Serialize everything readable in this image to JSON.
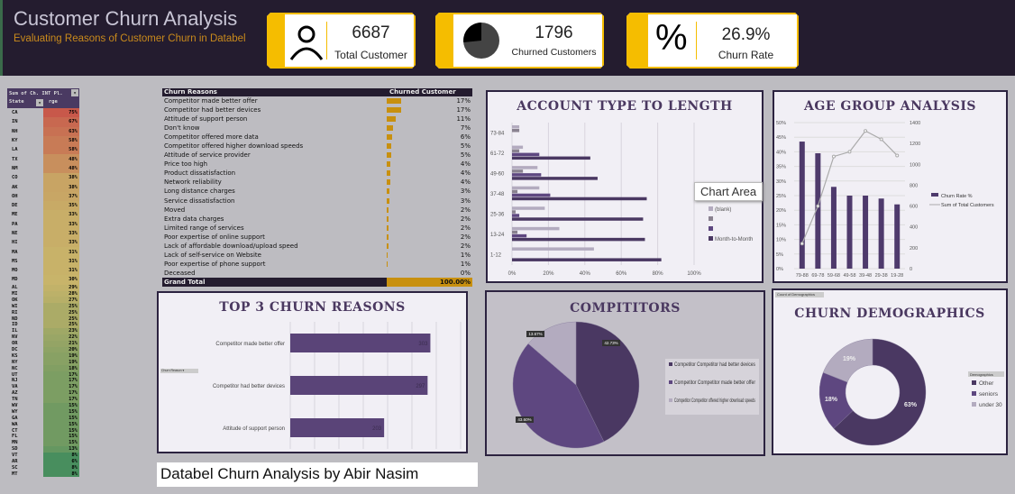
{
  "header": {
    "title": "Customer Churn Analysis",
    "subtitle": "Evaluating Reasons of Customer Churn in Databel"
  },
  "kpis": [
    {
      "value": "6687",
      "label": "Total Customer",
      "icon": "person-icon"
    },
    {
      "value": "1796",
      "label": "Churned Customers",
      "icon": "pie-icon"
    },
    {
      "value": "26.9%",
      "label": "Churn Rate",
      "icon": "percent-icon",
      "glyph": "%"
    }
  ],
  "states": {
    "header1": "Sum of Ch. INT Pl.",
    "header2": "State",
    "header2b": "rge",
    "rows": [
      [
        "CA",
        "75%",
        75
      ],
      [
        "IN",
        "67%",
        67
      ],
      [
        "NH",
        "63%",
        63
      ],
      [
        "KY",
        "58%",
        58
      ],
      [
        "LA",
        "58%",
        58
      ],
      [
        "TX",
        "48%",
        48
      ],
      [
        "NM",
        "48%",
        48
      ],
      [
        "CO",
        "38%",
        38
      ],
      [
        "AK",
        "38%",
        38
      ],
      [
        "OH",
        "37%",
        37
      ],
      [
        "DE",
        "35%",
        35
      ],
      [
        "ME",
        "33%",
        33
      ],
      [
        "PA",
        "33%",
        33
      ],
      [
        "NE",
        "33%",
        33
      ],
      [
        "HI",
        "33%",
        33
      ],
      [
        "MA",
        "31%",
        31
      ],
      [
        "MS",
        "31%",
        31
      ],
      [
        "MO",
        "31%",
        31
      ],
      [
        "MD",
        "30%",
        30
      ],
      [
        "AL",
        "29%",
        29
      ],
      [
        "MI",
        "28%",
        28
      ],
      [
        "OK",
        "27%",
        27
      ],
      [
        "WI",
        "25%",
        25
      ],
      [
        "RI",
        "25%",
        25
      ],
      [
        "ND",
        "25%",
        25
      ],
      [
        "ID",
        "25%",
        25
      ],
      [
        "IL",
        "23%",
        23
      ],
      [
        "NV",
        "22%",
        22
      ],
      [
        "OR",
        "21%",
        21
      ],
      [
        "DC",
        "20%",
        20
      ],
      [
        "KS",
        "19%",
        19
      ],
      [
        "NY",
        "19%",
        19
      ],
      [
        "NC",
        "18%",
        18
      ],
      [
        "UT",
        "17%",
        17
      ],
      [
        "NJ",
        "17%",
        17
      ],
      [
        "VA",
        "17%",
        17
      ],
      [
        "AZ",
        "17%",
        17
      ],
      [
        "TN",
        "17%",
        17
      ],
      [
        "WV",
        "15%",
        15
      ],
      [
        "WY",
        "15%",
        15
      ],
      [
        "GA",
        "15%",
        15
      ],
      [
        "WA",
        "15%",
        15
      ],
      [
        "CT",
        "15%",
        15
      ],
      [
        "FL",
        "15%",
        15
      ],
      [
        "MN",
        "15%",
        15
      ],
      [
        "SD",
        "13%",
        13
      ],
      [
        "VT",
        "8%",
        8
      ],
      [
        "AR",
        "6%",
        6
      ],
      [
        "SC",
        "8%",
        8
      ],
      [
        "MT",
        "8%",
        8
      ]
    ]
  },
  "reasons": {
    "col1": "Churn Reasons",
    "col2": "Churned Customer",
    "total_label": "Grand Total",
    "total_value": "100.00%",
    "rows": [
      [
        "Competitor made better offer",
        "17%",
        17
      ],
      [
        "Competitor had better devices",
        "17%",
        17
      ],
      [
        "Attitude of support person",
        "11%",
        11
      ],
      [
        "Don't know",
        "7%",
        7
      ],
      [
        "Competitor offered more data",
        "6%",
        6
      ],
      [
        "Competitor offered higher download speeds",
        "5%",
        5
      ],
      [
        "Attitude of service provider",
        "5%",
        5
      ],
      [
        "Price too high",
        "4%",
        4
      ],
      [
        "Product dissatisfaction",
        "4%",
        4
      ],
      [
        "Network reliability",
        "4%",
        4
      ],
      [
        "Long distance charges",
        "3%",
        3
      ],
      [
        "Service dissatisfaction",
        "3%",
        3
      ],
      [
        "Moved",
        "2%",
        2
      ],
      [
        "Extra data charges",
        "2%",
        2
      ],
      [
        "Limited range of services",
        "2%",
        2
      ],
      [
        "Poor expertise of online support",
        "2%",
        2
      ],
      [
        "Lack of affordable download/upload speed",
        "2%",
        2
      ],
      [
        "Lack of self-service on Website",
        "1%",
        1
      ],
      [
        "Poor expertise of phone support",
        "1%",
        1
      ],
      [
        "Deceased",
        "0%",
        0
      ]
    ]
  },
  "tooltip": "Chart Area",
  "footer": "Databel Churn Analysis by Abir Nasim",
  "chart_data": [
    {
      "type": "bar",
      "title": "ACCOUNT TYPE TO LENGTH",
      "orientation": "horizontal",
      "categories": [
        "73-84",
        "61-72",
        "49-60",
        "37-48",
        "25-36",
        "13-24",
        "1-12"
      ],
      "xticks": [
        "0%",
        "20%",
        "40%",
        "60%",
        "80%",
        "100%"
      ],
      "xlim": [
        0,
        100
      ],
      "legend": "right",
      "series": [
        {
          "name": "(blank)",
          "color": "#b3abbf",
          "values": [
            4,
            6,
            14,
            15,
            18,
            26,
            45
          ]
        },
        {
          "name": "",
          "color": "#8a8290",
          "values": [
            4,
            4,
            6,
            3,
            2,
            3,
            0
          ]
        },
        {
          "name": "",
          "color": "#5e4780",
          "values": [
            0,
            15,
            16,
            21,
            4,
            8,
            0
          ]
        },
        {
          "name": "Month-to-Month",
          "color": "#4a3862",
          "values": [
            0,
            43,
            47,
            74,
            72,
            73,
            82
          ]
        }
      ]
    },
    {
      "type": "bar+line",
      "title": "AGE GROUP ANALYSIS",
      "categories": [
        "79-88",
        "69-78",
        "59-68",
        "49-58",
        "39-48",
        "29-38",
        "19-28"
      ],
      "y1ticks": [
        "0%",
        "5%",
        "10%",
        "15%",
        "20%",
        "25%",
        "30%",
        "35%",
        "40%",
        "45%",
        "50%"
      ],
      "y1lim": [
        0,
        50
      ],
      "y2ticks": [
        "0",
        "200",
        "400",
        "600",
        "800",
        "1000",
        "1200",
        "1400"
      ],
      "y2lim": [
        0,
        1400
      ],
      "legend": "right",
      "series": [
        {
          "name": "Churn Rate %",
          "type": "bar",
          "axis": "left",
          "values": [
            43.5,
            39.5,
            28,
            25,
            25,
            24,
            22
          ]
        },
        {
          "name": "Sum of Total Customers",
          "type": "line",
          "axis": "right",
          "values": [
            240,
            600,
            1075,
            1120,
            1320,
            1240,
            1085
          ]
        }
      ]
    },
    {
      "type": "bar",
      "title": "TOP 3 CHURN REASONS",
      "orientation": "horizontal",
      "filter_label": "Churn Reason",
      "categories": [
        "Competitor made better offer",
        "Competitor had better devices",
        "Attitude of support person"
      ],
      "values": [
        303,
        297,
        203
      ],
      "data_labels": [
        "303",
        "297",
        "203"
      ],
      "xlim": [
        0,
        350
      ]
    },
    {
      "type": "pie",
      "title": "COMPITITORS",
      "legend": "right",
      "labels": [
        "Competitor Competitor had better devices",
        "Competitor Competitor made better offer",
        "Competitor Competitor offered higher download speeds"
      ],
      "values": [
        42.73,
        43.6,
        13.67
      ],
      "data_labels": [
        "42.73%",
        "43.60%",
        "13.67%"
      ],
      "colors": [
        "#4a3862",
        "#5e4780",
        "#b3abbf"
      ]
    },
    {
      "type": "pie",
      "donut": true,
      "title": "CHURN DEMOGRAPHICS",
      "field_button": "Count of Demographics",
      "legend_title": "Demographics",
      "legend": "right",
      "labels": [
        "Other",
        "seniors",
        "under 30"
      ],
      "values": [
        63,
        18,
        19
      ],
      "data_labels": [
        "63%",
        "18%",
        "19%"
      ],
      "colors": [
        "#4a3862",
        "#5e4780",
        "#b3abbf"
      ]
    }
  ]
}
